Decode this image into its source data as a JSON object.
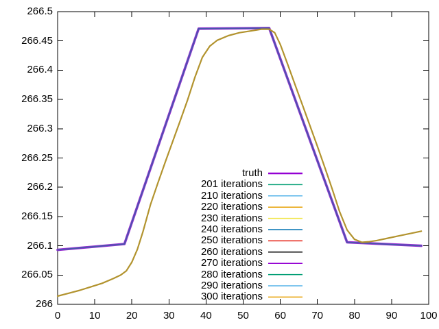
{
  "chart_data": {
    "type": "line",
    "title": "",
    "xlabel": "",
    "ylabel": "",
    "xlim": [
      0,
      100
    ],
    "ylim": [
      266,
      266.5
    ],
    "grid": false,
    "legend_position": "inside-right-center",
    "x_tick_labels": [
      "0",
      "10",
      "20",
      "30",
      "40",
      "50",
      "60",
      "70",
      "80",
      "90",
      "100"
    ],
    "y_tick_labels": [
      "266",
      "266.05",
      "266.1",
      "266.15",
      "266.2",
      "266.25",
      "266.3",
      "266.35",
      "266.4",
      "266.45",
      "266.5"
    ],
    "series": [
      {
        "name": "truth",
        "x": [
          0,
          18,
          38,
          57,
          78,
          98
        ],
        "y": [
          266.093,
          266.103,
          266.471,
          266.472,
          266.106,
          266.1
        ],
        "draw": [
          {
            "color": "#9a2fd2",
            "width": 3.6
          },
          {
            "color": "#4656ac",
            "width": 1.8
          }
        ]
      },
      {
        "name": "iteration curves 201-300 (all overlapping)",
        "x": [
          0,
          3,
          6,
          9,
          12,
          15,
          17,
          18.5,
          20,
          21.5,
          23,
          25,
          27,
          29,
          31,
          33,
          35,
          37,
          39,
          41,
          43,
          46,
          49,
          52,
          55,
          57,
          58.5,
          60,
          62,
          64,
          66,
          68,
          70,
          72,
          74,
          76,
          78,
          80,
          82,
          84,
          86,
          89,
          92,
          95,
          98
        ],
        "y": [
          266.014,
          266.019,
          266.024,
          266.03,
          266.036,
          266.044,
          266.05,
          266.057,
          266.072,
          266.094,
          266.124,
          266.17,
          266.207,
          266.243,
          266.278,
          266.313,
          266.349,
          266.388,
          266.422,
          266.441,
          266.451,
          266.459,
          266.464,
          266.467,
          266.47,
          266.47,
          266.464,
          266.444,
          266.41,
          266.375,
          266.34,
          266.305,
          266.27,
          266.234,
          266.197,
          266.158,
          266.127,
          266.111,
          266.106,
          266.107,
          266.109,
          266.113,
          266.117,
          266.121,
          266.125
        ],
        "draw": [
          {
            "color": "#b2932e",
            "width": 2.2
          }
        ]
      }
    ],
    "legend": [
      {
        "label": "truth",
        "color": "#9400d3",
        "lw": 2.4
      },
      {
        "label": "201 iterations",
        "color": "#009e73",
        "lw": 1.5
      },
      {
        "label": "210 iterations",
        "color": "#56b4e9",
        "lw": 1.5
      },
      {
        "label": "220 iterations",
        "color": "#e69f00",
        "lw": 1.5
      },
      {
        "label": "230 iterations",
        "color": "#f0e442",
        "lw": 1.5
      },
      {
        "label": "240 iterations",
        "color": "#0072b2",
        "lw": 1.5
      },
      {
        "label": "250 iterations",
        "color": "#e51e10",
        "lw": 1.5
      },
      {
        "label": "260 iterations",
        "color": "#000000",
        "lw": 1.5
      },
      {
        "label": "270 iterations",
        "color": "#9400d3",
        "lw": 1.5
      },
      {
        "label": "280 iterations",
        "color": "#009e73",
        "lw": 1.5
      },
      {
        "label": "290 iterations",
        "color": "#56b4e9",
        "lw": 1.5
      },
      {
        "label": "300 iterations",
        "color": "#e69f00",
        "lw": 1.5
      }
    ],
    "axis_color": "#000000",
    "background_color": "#ffffff"
  }
}
